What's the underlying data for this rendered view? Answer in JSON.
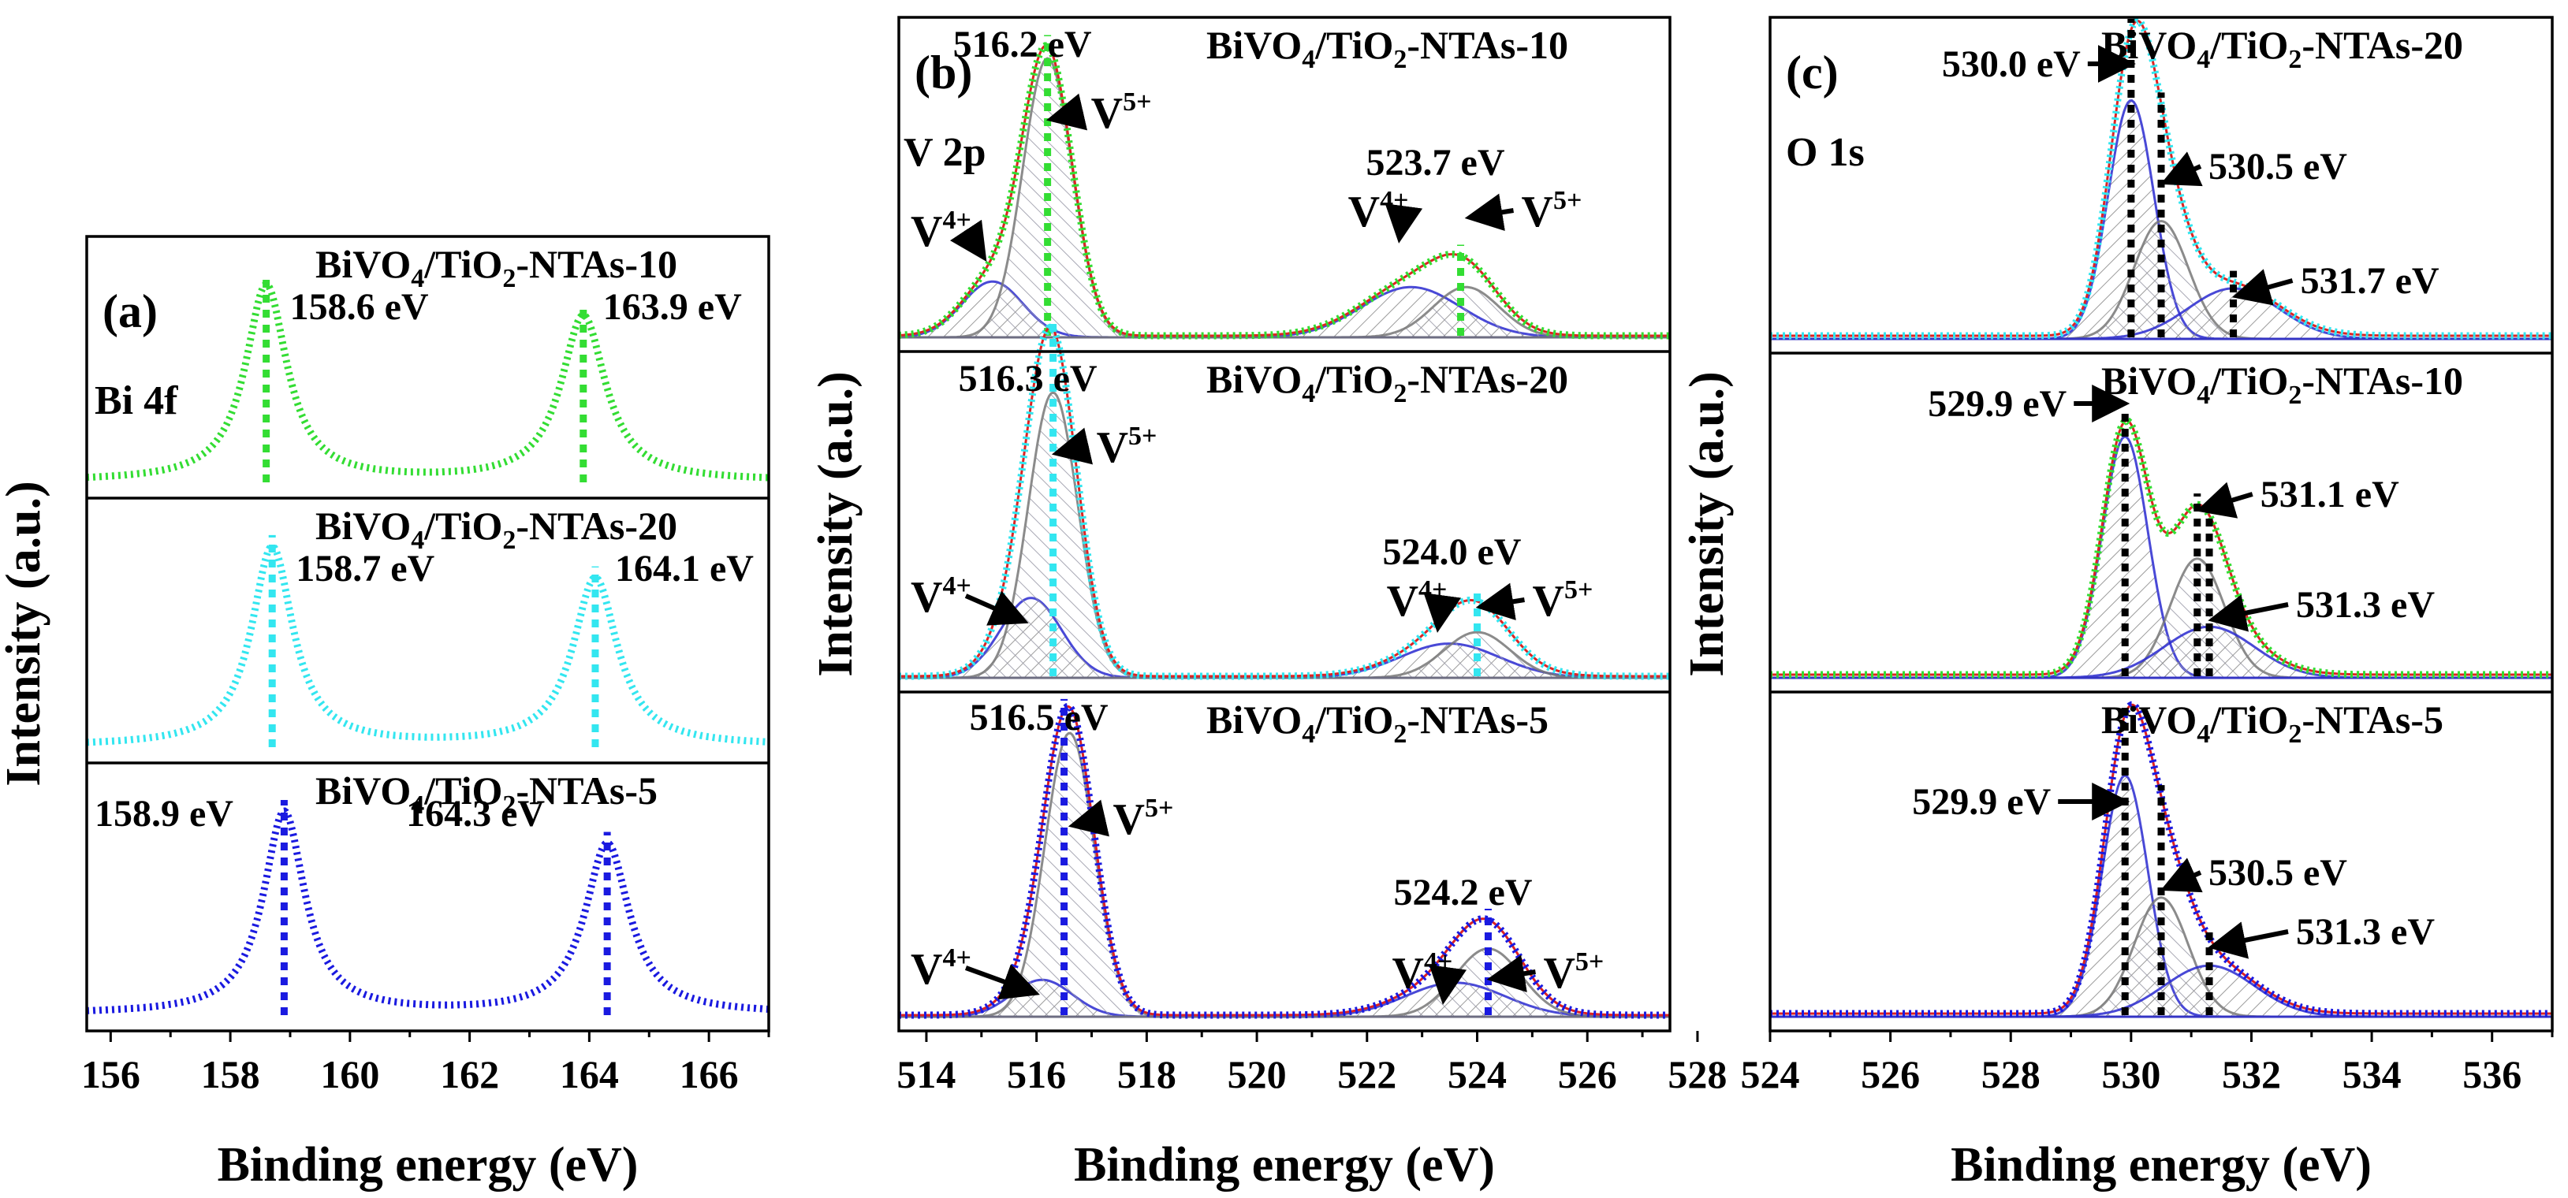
{
  "chart_data": [
    {
      "type": "line",
      "panel": "(a)",
      "element_label": "Bi 4f",
      "xlabel": "Binding energy (eV)",
      "ylabel": "Intensity (a.u.)",
      "xlim": [
        155.6,
        167.0
      ],
      "xticks": [
        156,
        158,
        160,
        162,
        164,
        166
      ],
      "xtick_labels": [
        "156",
        "158",
        "160",
        "162",
        "164",
        "166"
      ],
      "series": [
        {
          "name": "BiVO4/TiO2-NTAs-10",
          "label_main": "BiVO",
          "label_sub1": "4",
          "label_mid": "/TiO",
          "label_sub2": "2",
          "label_end": "-NTAs-10",
          "color": "#33dd33",
          "peaks": [
            {
              "x": 158.6,
              "label": "158.6 eV"
            },
            {
              "x": 163.9,
              "label": "163.9 eV"
            }
          ]
        },
        {
          "name": "BiVO4/TiO2-NTAs-20",
          "label_main": "BiVO",
          "label_sub1": "4",
          "label_mid": "/TiO",
          "label_sub2": "2",
          "label_end": "-NTAs-20",
          "color": "#33e6f0",
          "peaks": [
            {
              "x": 158.7,
              "label": "158.7 eV"
            },
            {
              "x": 164.1,
              "label": "164.1 eV"
            }
          ]
        },
        {
          "name": "BiVO4/TiO2-NTAs-5",
          "label_main": "BiVO",
          "label_sub1": "4",
          "label_mid": "/TiO",
          "label_sub2": "2",
          "label_end": "-NTAs-5",
          "color": "#1a1ae0",
          "peaks": [
            {
              "x": 158.9,
              "label": "158.9 eV"
            },
            {
              "x": 164.3,
              "label": "164.3 eV"
            }
          ]
        }
      ]
    },
    {
      "type": "line",
      "panel": "(b)",
      "element_label": "V 2p",
      "xlabel": "Binding energy (eV)",
      "ylabel": "Intensity (a.u.)",
      "xlim": [
        513.5,
        527.5
      ],
      "xticks": [
        514,
        516,
        518,
        520,
        522,
        524,
        526,
        528
      ],
      "xtick_labels": [
        "514",
        "516",
        "518",
        "520",
        "522",
        "524",
        "526",
        "528"
      ],
      "series": [
        {
          "name": "BiVO4/TiO2-NTAs-10",
          "label_main": "BiVO",
          "label_sub1": "4",
          "label_mid": "/TiO",
          "label_sub2": "2",
          "label_end": "-NTAs-10",
          "color": "#33dd33",
          "peaks": [
            {
              "x": 516.2,
              "label": "516.2 eV"
            },
            {
              "x": 523.7,
              "label": "523.7 eV"
            }
          ],
          "components": [
            {
              "label": "V4+",
              "ion": "V",
              "charge": "4+",
              "x": 515.2
            },
            {
              "label": "V5+",
              "ion": "V",
              "charge": "5+",
              "x": 516.2
            },
            {
              "label": "V4+",
              "ion": "V",
              "charge": "4+",
              "x": 522.8
            },
            {
              "label": "V5+",
              "ion": "V",
              "charge": "5+",
              "x": 523.8
            }
          ]
        },
        {
          "name": "BiVO4/TiO2-NTAs-20",
          "label_main": "BiVO",
          "label_sub1": "4",
          "label_mid": "/TiO",
          "label_sub2": "2",
          "label_end": "-NTAs-20",
          "color": "#33e6f0",
          "peaks": [
            {
              "x": 516.3,
              "label": "516.3 eV"
            },
            {
              "x": 524.0,
              "label": "524.0 eV"
            }
          ],
          "components": [
            {
              "label": "V4+",
              "ion": "V",
              "charge": "4+",
              "x": 515.9
            },
            {
              "label": "V5+",
              "ion": "V",
              "charge": "5+",
              "x": 516.3
            },
            {
              "label": "V4+",
              "ion": "V",
              "charge": "4+",
              "x": 523.5
            },
            {
              "label": "V5+",
              "ion": "V",
              "charge": "5+",
              "x": 524.0
            }
          ]
        },
        {
          "name": "BiVO4/TiO2-NTAs-5",
          "label_main": "BiVO",
          "label_sub1": "4",
          "label_mid": "/TiO",
          "label_sub2": "2",
          "label_end": "-NTAs-5",
          "color": "#1a1ae0",
          "peaks": [
            {
              "x": 516.5,
              "label": "516.5 eV"
            },
            {
              "x": 524.2,
              "label": "524.2 eV"
            }
          ],
          "components": [
            {
              "label": "V4+",
              "ion": "V",
              "charge": "4+",
              "x": 516.1
            },
            {
              "label": "V5+",
              "ion": "V",
              "charge": "5+",
              "x": 516.6
            },
            {
              "label": "V4+",
              "ion": "V",
              "charge": "4+",
              "x": 523.6
            },
            {
              "label": "V5+",
              "ion": "V",
              "charge": "5+",
              "x": 524.2
            }
          ]
        }
      ]
    },
    {
      "type": "line",
      "panel": "(c)",
      "element_label": "O 1s",
      "xlabel": "Binding energy (eV)",
      "ylabel": "Intensity (a.u.)",
      "xlim": [
        524.0,
        537.0
      ],
      "xticks": [
        524,
        526,
        528,
        530,
        532,
        534,
        536
      ],
      "xtick_labels": [
        "524",
        "526",
        "528",
        "530",
        "532",
        "534",
        "536"
      ],
      "series": [
        {
          "name": "BiVO4/TiO2-NTAs-20",
          "label_main": "BiVO",
          "label_sub1": "4",
          "label_mid": "/TiO",
          "label_sub2": "2",
          "label_end": "-NTAs-20",
          "color": "#33e6f0",
          "peaks": [
            {
              "x": 530.0,
              "label": "530.0 eV"
            },
            {
              "x": 530.5,
              "label": "530.5 eV"
            },
            {
              "x": 531.7,
              "label": "531.7 eV"
            }
          ]
        },
        {
          "name": "BiVO4/TiO2-NTAs-10",
          "label_main": "BiVO",
          "label_sub1": "4",
          "label_mid": "/TiO",
          "label_sub2": "2",
          "label_end": "-NTAs-10",
          "color": "#33dd33",
          "peaks": [
            {
              "x": 529.9,
              "label": "529.9 eV"
            },
            {
              "x": 531.1,
              "label": "531.1 eV"
            },
            {
              "x": 531.3,
              "label": "531.3 eV"
            }
          ]
        },
        {
          "name": "BiVO4/TiO2-NTAs-5",
          "label_main": "BiVO",
          "label_sub1": "4",
          "label_mid": "/TiO",
          "label_sub2": "2",
          "label_end": "-NTAs-5",
          "color": "#1a1ae0",
          "peaks": [
            {
              "x": 529.9,
              "label": "529.9 eV"
            },
            {
              "x": 530.5,
              "label": "530.5 eV"
            },
            {
              "x": 531.3,
              "label": "531.3 eV"
            }
          ]
        }
      ]
    }
  ]
}
